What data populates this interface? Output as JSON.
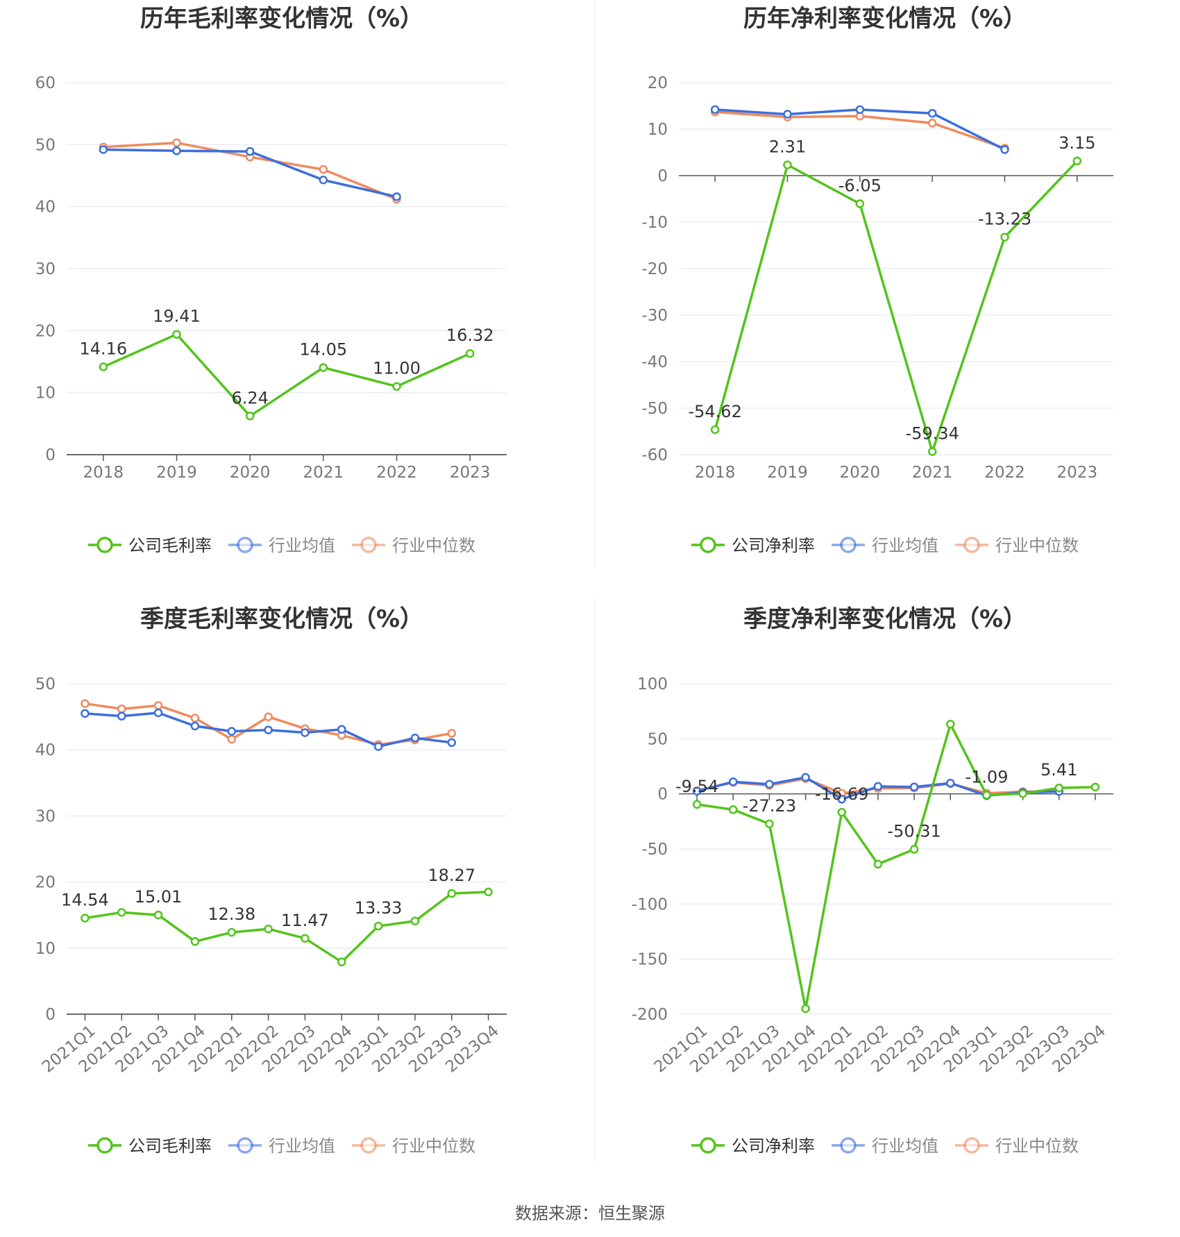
{
  "footer": {
    "source": "数据来源：恒生聚源"
  },
  "colors": {
    "company": "#52c41a",
    "avg": "#3b6fde",
    "median": "#f08a5d",
    "grid": "#e0e4ef",
    "axis": "#555555",
    "tick": "#777777"
  },
  "chart_data": [
    {
      "type": "line",
      "title": "历年毛利率变化情况（%）",
      "categories": [
        "2018",
        "2019",
        "2020",
        "2021",
        "2022",
        "2023"
      ],
      "ylim": [
        0,
        60
      ],
      "yticks": [
        "0",
        "10",
        "20",
        "30",
        "40",
        "50",
        "60"
      ],
      "series": [
        {
          "name": "公司毛利率",
          "values": [
            14.16,
            19.41,
            6.24,
            14.05,
            11.0,
            16.32
          ],
          "labels": [
            "14.16",
            "19.41",
            "6.24",
            "14.05",
            "11.00",
            "16.32"
          ]
        },
        {
          "name": "行业均值",
          "values": [
            49.2,
            49.0,
            48.9,
            44.3,
            41.6,
            null
          ]
        },
        {
          "name": "行业中位数",
          "values": [
            49.6,
            50.3,
            48.0,
            46.0,
            41.2,
            null
          ]
        }
      ],
      "legend_position": "bottom"
    },
    {
      "type": "line",
      "title": "历年净利率变化情况（%）",
      "categories": [
        "2018",
        "2019",
        "2020",
        "2021",
        "2022",
        "2023"
      ],
      "ylim": [
        -60,
        20
      ],
      "yticks": [
        "-60",
        "-50",
        "-40",
        "-30",
        "-20",
        "-10",
        "0",
        "10",
        "20"
      ],
      "series": [
        {
          "name": "公司净利率",
          "values": [
            -54.62,
            2.31,
            -6.05,
            -59.34,
            -13.23,
            3.15
          ],
          "labels": [
            "-54.62",
            "2.31",
            "-6.05",
            "-59.34",
            "-13.23",
            "3.15"
          ]
        },
        {
          "name": "行业均值",
          "values": [
            14.2,
            13.2,
            14.2,
            13.4,
            5.6,
            null
          ]
        },
        {
          "name": "行业中位数",
          "values": [
            13.7,
            12.6,
            12.8,
            11.3,
            5.9,
            null
          ]
        }
      ],
      "legend_position": "bottom"
    },
    {
      "type": "line",
      "title": "季度毛利率变化情况（%）",
      "categories": [
        "2021Q1",
        "2021Q2",
        "2021Q3",
        "2021Q4",
        "2022Q1",
        "2022Q2",
        "2022Q3",
        "2022Q4",
        "2023Q1",
        "2023Q2",
        "2023Q3",
        "2023Q4"
      ],
      "ylim": [
        0,
        50
      ],
      "yticks": [
        "0",
        "10",
        "20",
        "30",
        "40",
        "50"
      ],
      "series": [
        {
          "name": "公司毛利率",
          "values": [
            14.54,
            15.4,
            15.01,
            11.0,
            12.38,
            12.9,
            11.47,
            7.9,
            13.33,
            14.1,
            18.27,
            18.5
          ],
          "labels": [
            "14.54",
            "",
            "15.01",
            "",
            "12.38",
            "",
            "11.47",
            "",
            "13.33",
            "",
            "18.27",
            ""
          ]
        },
        {
          "name": "行业均值",
          "values": [
            45.5,
            45.1,
            45.6,
            43.6,
            42.8,
            43.0,
            42.6,
            43.1,
            40.5,
            41.8,
            41.1,
            null
          ]
        },
        {
          "name": "行业中位数",
          "values": [
            47.0,
            46.2,
            46.7,
            44.8,
            41.6,
            45.0,
            43.2,
            42.2,
            40.8,
            41.5,
            42.5,
            null
          ]
        }
      ],
      "legend_position": "bottom"
    },
    {
      "type": "line",
      "title": "季度净利率变化情况（%）",
      "categories": [
        "2021Q1",
        "2021Q2",
        "2021Q3",
        "2021Q4",
        "2022Q1",
        "2022Q2",
        "2022Q3",
        "2022Q4",
        "2023Q1",
        "2023Q2",
        "2023Q3",
        "2023Q4"
      ],
      "ylim": [
        -200,
        100
      ],
      "yticks": [
        "-200",
        "-150",
        "-100",
        "-50",
        "0",
        "50",
        "100"
      ],
      "series": [
        {
          "name": "公司净利率",
          "values": [
            -9.54,
            -14.3,
            -27.23,
            -195.0,
            -16.69,
            -63.8,
            -50.31,
            63.3,
            -1.09,
            0.3,
            5.41,
            6.2
          ],
          "labels": [
            "-9.54",
            "",
            "-27.23",
            "",
            "-16.69",
            "",
            "-50.31",
            "",
            "-1.09",
            "",
            "5.41",
            ""
          ]
        },
        {
          "name": "行业均值",
          "values": [
            2.5,
            11.0,
            8.8,
            15.0,
            -4.8,
            6.8,
            6.3,
            9.8,
            -1.6,
            1.4,
            2.2,
            null
          ]
        },
        {
          "name": "行业中位数",
          "values": [
            3.0,
            10.4,
            7.7,
            13.9,
            0.5,
            5.0,
            5.3,
            9.3,
            0.6,
            2.0,
            2.3,
            null
          ]
        }
      ],
      "legend_position": "bottom"
    }
  ]
}
